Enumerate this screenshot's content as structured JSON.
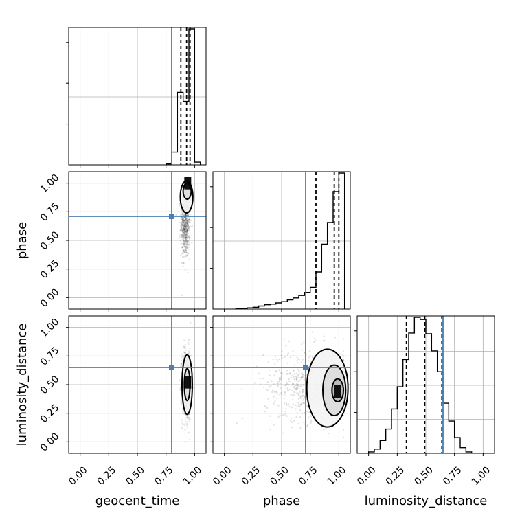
{
  "chart_data": {
    "type": "corner",
    "parameters": [
      "geocent_time",
      "phase",
      "luminosity_distance"
    ],
    "axis_range": [
      -0.1,
      1.1
    ],
    "ticks": [
      0.0,
      0.25,
      0.5,
      0.75,
      1.0
    ],
    "tick_labels": [
      "0.00",
      "0.25",
      "0.50",
      "0.75",
      "1.00"
    ],
    "grid": true,
    "colors": {
      "truth": "#4a7fb5",
      "hist": "#000000"
    },
    "truths": {
      "geocent_time": 0.8,
      "phase": 0.71,
      "luminosity_distance": 0.65
    },
    "marginals": [
      {
        "parameter": "geocent_time",
        "bins": [
          0.75,
          0.8,
          0.85,
          0.9,
          0.95,
          1.0,
          1.05
        ],
        "counts": [
          2,
          28,
          160,
          140,
          300,
          6
        ],
        "quantiles": [
          0.88,
          0.93,
          0.96
        ]
      },
      {
        "parameter": "phase",
        "bins": [
          0.1,
          0.15,
          0.2,
          0.25,
          0.3,
          0.35,
          0.4,
          0.45,
          0.5,
          0.55,
          0.6,
          0.65,
          0.7,
          0.75,
          0.8,
          0.85,
          0.9,
          0.95,
          1.0,
          1.05
        ],
        "counts": [
          1,
          1,
          2,
          3,
          5,
          7,
          8,
          10,
          12,
          15,
          18,
          22,
          27,
          35,
          60,
          105,
          140,
          190,
          220
        ],
        "quantiles": [
          0.8,
          0.96,
          1.0
        ]
      },
      {
        "parameter": "luminosity_distance",
        "bins": [
          0.0,
          0.05,
          0.1,
          0.15,
          0.2,
          0.25,
          0.3,
          0.35,
          0.4,
          0.45,
          0.5,
          0.55,
          0.6,
          0.65,
          0.7,
          0.75,
          0.8,
          0.85,
          0.9
        ],
        "counts": [
          2,
          6,
          18,
          34,
          62,
          93,
          131,
          168,
          190,
          187,
          167,
          143,
          114,
          70,
          45,
          22,
          8,
          2
        ],
        "quantiles": [
          0.33,
          0.49,
          0.64
        ]
      }
    ],
    "pairs": [
      {
        "x": "geocent_time",
        "y": "phase",
        "scatter_center": [
          0.92,
          0.65
        ],
        "scatter_spread": [
          0.02,
          0.15
        ],
        "contours": [
          {
            "cx": 0.935,
            "cy": 0.93,
            "rx": 0.035,
            "ry": 0.07
          },
          {
            "cx": 0.93,
            "cy": 0.88,
            "rx": 0.055,
            "ry": 0.14
          }
        ],
        "density_peak": [
          0.94,
          1.0
        ]
      },
      {
        "x": "geocent_time",
        "y": "luminosity_distance",
        "scatter_center": [
          0.93,
          0.5
        ],
        "scatter_spread": [
          0.02,
          0.16
        ],
        "contours": [
          {
            "cx": 0.935,
            "cy": 0.5,
            "rx": 0.025,
            "ry": 0.14
          },
          {
            "cx": 0.935,
            "cy": 0.5,
            "rx": 0.045,
            "ry": 0.26
          }
        ],
        "density_peak": [
          0.94,
          0.52
        ]
      },
      {
        "x": "phase",
        "y": "luminosity_distance",
        "scatter_center": [
          0.75,
          0.5
        ],
        "scatter_spread": [
          0.2,
          0.16
        ],
        "contours": [
          {
            "cx": 0.99,
            "cy": 0.45,
            "rx": 0.05,
            "ry": 0.1
          },
          {
            "cx": 0.96,
            "cy": 0.45,
            "rx": 0.1,
            "ry": 0.22
          },
          {
            "cx": 0.9,
            "cy": 0.47,
            "rx": 0.18,
            "ry": 0.34
          }
        ],
        "density_peak": [
          0.99,
          0.44
        ]
      }
    ]
  }
}
